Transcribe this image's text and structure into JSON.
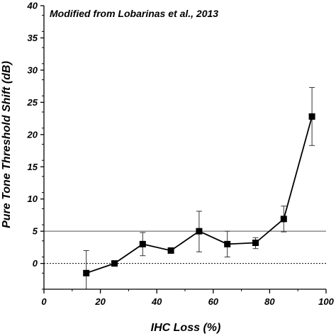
{
  "chart_data": {
    "type": "line",
    "annotation": "Modified from Lobarinas et al., 2013",
    "xlabel": "IHC Loss (%)",
    "ylabel": "Pure Tone Threshold Shift (dB)",
    "xlim": [
      0,
      100
    ],
    "ylim": [
      -4,
      40
    ],
    "xticks": [
      "0",
      "20",
      "40",
      "60",
      "80",
      "100"
    ],
    "yticks": [
      "0",
      "5",
      "10",
      "15",
      "20",
      "25",
      "30",
      "35",
      "40"
    ],
    "x": [
      15,
      25,
      35,
      45,
      55,
      65,
      75,
      85,
      95
    ],
    "y": [
      -1.5,
      0,
      3,
      2,
      5,
      3,
      3.2,
      6.9,
      22.8
    ],
    "err_upper": [
      2,
      0,
      4.8,
      2,
      8.1,
      5,
      4,
      8.9,
      27.3
    ],
    "err_lower": [
      -4,
      0,
      1.2,
      2,
      1.8,
      1,
      2.3,
      4.9,
      18.3
    ],
    "reference_lines": [
      {
        "y": 5,
        "style": "solid"
      },
      {
        "y": 0,
        "style": "dotted"
      }
    ],
    "marker": "square",
    "grid": false,
    "colors": {
      "series": "#000000",
      "reference": "#555555"
    }
  }
}
